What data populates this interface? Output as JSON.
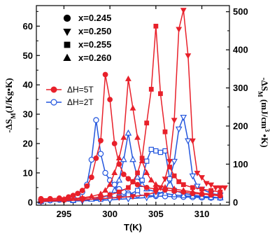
{
  "chart_data": {
    "type": "line",
    "xlabel": "T(K)",
    "ylabel_left": "-ΔS_M(J/Kg•K)",
    "ylabel_right": "-ΔS_M (mJ/cm^3 •K)",
    "xlim": [
      292,
      313
    ],
    "ylim": [
      -1,
      67
    ],
    "ylim_right": [
      -7.7,
      516
    ],
    "x_ticks": [
      295,
      300,
      305,
      310
    ],
    "y_ticks": [
      0,
      10,
      20,
      30,
      40,
      50,
      60
    ],
    "y_ticks_right": [
      0,
      100,
      200,
      300,
      400,
      500
    ],
    "colors": {
      "dH5T": "#e8202a",
      "dH2T": "#2255dd"
    },
    "composition_legend": [
      {
        "marker": "circle",
        "label": "x=0.245"
      },
      {
        "marker": "triangle-down",
        "label": "x=0.250"
      },
      {
        "marker": "square",
        "label": "x=0.255"
      },
      {
        "marker": "triangle-up",
        "label": "x=0.260"
      }
    ],
    "field_legend": [
      {
        "key": "dH5T",
        "label": "ΔH=5T",
        "filled": true
      },
      {
        "key": "dH2T",
        "label": "ΔH=2T",
        "filled": false
      }
    ],
    "series": [
      {
        "field": "dH5T",
        "composition": "x=0.245",
        "marker": "circle",
        "filled": true,
        "x": [
          292.5,
          293.5,
          294.5,
          295.5,
          296.0,
          296.5,
          297.0,
          297.5,
          298.0,
          298.5,
          299.0,
          299.5,
          300.0,
          300.5,
          301.0,
          301.5,
          302.0,
          302.5,
          303.0,
          304.0,
          305.0,
          306.0,
          307.0,
          308.0,
          309.0,
          310.0,
          311.0,
          312.0
        ],
        "y": [
          1.2,
          1.2,
          1.4,
          1.8,
          2.3,
          3.0,
          4.0,
          5.5,
          8.5,
          15.0,
          21.0,
          43.5,
          35.0,
          20.0,
          13.0,
          9.5,
          8.0,
          7.0,
          6.0,
          5.0,
          4.5,
          4.2,
          3.8,
          3.5,
          3.0,
          2.8,
          2.5,
          2.2
        ]
      },
      {
        "field": "dH5T",
        "composition": "x=0.250",
        "marker": "triangle-down",
        "filled": true,
        "x": [
          292.5,
          295.0,
          297.0,
          299.0,
          301.0,
          302.5,
          304.0,
          305.0,
          305.5,
          306.0,
          306.5,
          307.0,
          307.5,
          308.0,
          308.5,
          309.0,
          309.5,
          310.0,
          310.5,
          311.0,
          311.5,
          312.0,
          312.5
        ],
        "y": [
          0.3,
          0.5,
          0.8,
          1.2,
          1.6,
          2.0,
          2.5,
          3.5,
          5.0,
          8.0,
          14.0,
          28.0,
          59.0,
          65.5,
          50.0,
          21.0,
          10.0,
          8.5,
          6.5,
          6.0,
          5.0,
          5.0,
          5.0
        ]
      },
      {
        "field": "dH5T",
        "composition": "x=0.255",
        "marker": "square",
        "filled": true,
        "x": [
          292.5,
          295.0,
          297.0,
          299.0,
          300.0,
          301.0,
          302.0,
          302.5,
          303.0,
          303.5,
          304.0,
          304.5,
          305.0,
          305.5,
          306.0,
          306.5,
          307.0,
          307.5,
          308.0,
          309.0,
          310.0,
          311.0,
          312.0
        ],
        "y": [
          0.5,
          0.8,
          1.2,
          1.8,
          2.5,
          3.5,
          5.0,
          7.0,
          10.0,
          15.0,
          27.0,
          38.5,
          60.0,
          37.0,
          24.0,
          12.0,
          9.0,
          7.0,
          6.0,
          5.0,
          4.5,
          4.0,
          3.5
        ]
      },
      {
        "field": "dH5T",
        "composition": "x=0.260",
        "marker": "triangle-up",
        "filled": true,
        "x": [
          292.5,
          295.0,
          297.0,
          298.0,
          299.0,
          299.5,
          300.0,
          300.5,
          301.0,
          301.5,
          302.0,
          302.5,
          303.0,
          303.5,
          304.0,
          304.5,
          305.0,
          306.0,
          307.0,
          308.0,
          309.0,
          310.0,
          311.0,
          312.0
        ],
        "y": [
          0.8,
          1.0,
          1.5,
          2.0,
          2.8,
          4.0,
          6.0,
          10.0,
          15.0,
          22.0,
          42.0,
          32.0,
          22.0,
          14.0,
          10.0,
          7.5,
          6.0,
          5.0,
          4.5,
          4.0,
          3.5,
          3.0,
          2.8,
          2.5
        ]
      },
      {
        "field": "dH2T",
        "composition": "x=0.245",
        "marker": "circle",
        "filled": false,
        "x": [
          292.5,
          293.5,
          294.5,
          295.5,
          296.0,
          296.5,
          297.0,
          297.5,
          298.0,
          298.5,
          299.0,
          299.5,
          300.0,
          300.5,
          301.0,
          301.5,
          302.0,
          303.0,
          304.0,
          305.0,
          306.0,
          307.0,
          308.0,
          309.0,
          310.0,
          311.0,
          312.0
        ],
        "y": [
          0.5,
          0.6,
          0.8,
          1.2,
          1.6,
          2.2,
          3.5,
          6.0,
          14.5,
          28.0,
          16.5,
          10.0,
          7.5,
          6.0,
          4.5,
          3.5,
          3.0,
          2.5,
          2.3,
          2.1,
          2.0,
          1.9,
          1.8,
          1.7,
          1.6,
          1.5,
          1.5
        ]
      },
      {
        "field": "dH2T",
        "composition": "x=0.250",
        "marker": "triangle-down",
        "filled": false,
        "x": [
          292.5,
          297.0,
          300.0,
          302.0,
          304.0,
          305.0,
          306.0,
          306.5,
          307.0,
          307.5,
          308.0,
          308.5,
          309.0,
          309.5,
          310.0,
          311.0,
          312.0
        ],
        "y": [
          0.2,
          0.5,
          0.8,
          1.2,
          1.6,
          2.2,
          4.0,
          7.5,
          14.0,
          25.0,
          29.0,
          21.0,
          9.0,
          5.5,
          4.5,
          3.0,
          2.5
        ]
      },
      {
        "field": "dH2T",
        "composition": "x=0.255",
        "marker": "square",
        "filled": false,
        "x": [
          292.5,
          296.0,
          299.0,
          301.0,
          302.0,
          303.0,
          303.5,
          304.0,
          304.5,
          305.0,
          305.5,
          306.0,
          306.5,
          307.0,
          308.0,
          309.0,
          310.0,
          311.0,
          312.0
        ],
        "y": [
          0.3,
          0.6,
          1.0,
          1.8,
          2.5,
          4.0,
          7.5,
          14.0,
          18.0,
          17.5,
          17.0,
          17.5,
          8.0,
          4.0,
          3.0,
          2.5,
          2.0,
          1.8,
          1.5
        ]
      },
      {
        "field": "dH2T",
        "composition": "x=0.260",
        "marker": "triangle-up",
        "filled": false,
        "x": [
          292.5,
          296.0,
          298.0,
          299.0,
          300.0,
          300.5,
          301.0,
          301.5,
          302.0,
          302.5,
          303.0,
          303.5,
          304.0,
          305.0,
          306.0,
          307.0,
          308.0,
          309.0,
          310.0,
          311.0,
          312.0
        ],
        "y": [
          0.3,
          0.6,
          1.0,
          1.5,
          2.5,
          4.0,
          7.5,
          14.5,
          23.5,
          14.5,
          8.5,
          6.0,
          4.5,
          3.5,
          3.0,
          2.5,
          2.2,
          2.0,
          1.8,
          1.6,
          1.5
        ]
      }
    ]
  }
}
